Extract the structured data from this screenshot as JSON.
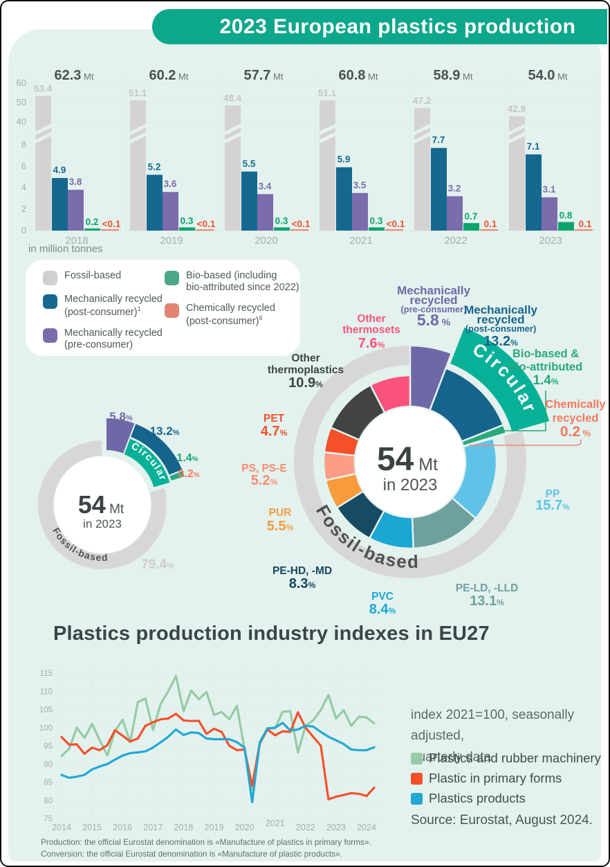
{
  "title": "2023 European plastics production",
  "legend": {
    "items": [
      {
        "lines": [
          "Fossil-based"
        ],
        "sup": "",
        "color": "#d2d0ce",
        "col": 1
      },
      {
        "lines": [
          "Mechanically recycled",
          "(post-consumer)"
        ],
        "sup": "1",
        "color": "#16688f",
        "col": 1
      },
      {
        "lines": [
          "Mechanically recycled",
          "(pre-consumer)"
        ],
        "sup": "",
        "color": "#7b6cac",
        "col": 1
      },
      {
        "lines": [
          "Bio-based (including",
          "bio-attributed since 2022)"
        ],
        "sup": "",
        "color": "#4aa886",
        "col": 2
      },
      {
        "lines": [
          "Chemically recycled",
          "(post-consumer)"
        ],
        "sup": "6",
        "color": "#e28472",
        "col": 2
      }
    ]
  },
  "footnotes": [
    "Production: the official Eurostat denomination is «Manufacture of plastics in primary forms».",
    "Conversion: the official Eurostat denomination is «Manufacture of plastic products»."
  ],
  "chart_data": [
    {
      "type": "bar",
      "id": "production-by-source",
      "unit_note": "in million tonnes",
      "totals_unit": "Mt",
      "categories": [
        "2018",
        "2019",
        "2020",
        "2021",
        "2022",
        "2023"
      ],
      "totals": [
        62.3,
        60.2,
        57.7,
        60.8,
        58.9,
        54.0
      ],
      "y_ticks_upper": [
        60,
        50,
        40
      ],
      "y_ticks_lower": [
        8,
        6,
        4,
        2,
        0
      ],
      "series": [
        {
          "name": "Fossil-based",
          "color": "#d5d3d1",
          "label_color": "#c6c3c1",
          "values": [
            53.4,
            51.1,
            48.4,
            51.1,
            47.2,
            42.9
          ]
        },
        {
          "name": "Mechanically recycled (post-consumer)",
          "color": "#16688f",
          "label_color": "#16688f",
          "values": [
            4.9,
            5.2,
            5.5,
            5.9,
            7.7,
            7.1
          ]
        },
        {
          "name": "Mechanically recycled (pre-consumer)",
          "color": "#7b6cac",
          "label_color": "#7b6cac",
          "values": [
            3.8,
            3.6,
            3.4,
            3.5,
            3.2,
            3.1
          ]
        },
        {
          "name": "Bio-based (including bio-attributed since 2022)",
          "color": "#0aa46c",
          "label_color": "#0aa46c",
          "values": [
            0.2,
            0.3,
            0.3,
            0.3,
            0.7,
            0.8
          ]
        },
        {
          "name": "Chemically recycled (post-consumer)",
          "color": "#ef8a76",
          "label_color": "#f4512b",
          "labels": [
            "<0.1",
            "<0.1",
            "<0.1",
            "<0.1",
            "0.1",
            "0.1"
          ]
        }
      ]
    },
    {
      "type": "pie",
      "id": "circular-vs-fossil-donut",
      "center_value": "54",
      "center_unit": "Mt",
      "center_sub": "in 2023",
      "circular_arc_label": "Circular",
      "fossil_label": "Fossil-based",
      "fossil_pct": 79.4,
      "segments": [
        {
          "name": "Mechanically recycled (pre-consumer)",
          "pct": 5.8,
          "color": "#6f68a7",
          "label_color": "#6f68a7"
        },
        {
          "name": "Mechanically recycled (post-consumer)",
          "pct": 13.2,
          "color": "#16648e",
          "label_color": "#16648e"
        },
        {
          "name": "Bio-based & bio-attributed",
          "pct": 1.4,
          "color": "#2aa87c",
          "label_color": "#1ba377"
        },
        {
          "name": "Chemically recycled",
          "pct": 0.2,
          "color": "#f08a76",
          "label_color": "#f4795b"
        }
      ]
    },
    {
      "type": "pie",
      "id": "polymer-breakdown-donut",
      "center_value": "54",
      "center_unit": "Mt",
      "center_sub": "in 2023",
      "circular_arc_label": "Circular",
      "fossil_label": "Fossil-based",
      "segments": [
        {
          "lines": [
            "Mechanically",
            "recycled",
            "(pre-consumer)"
          ],
          "pct": 5.8,
          "color": "#6f68a7",
          "label_color": "#6f68a7",
          "pct_space": true
        },
        {
          "lines": [
            "Mechanically",
            "recycled",
            "(post-consumer)"
          ],
          "pct": 13.2,
          "color": "#16648e",
          "label_color": "#16648e"
        },
        {
          "lines": [
            "Bio-based &",
            "bio-attributed"
          ],
          "pct": 1.4,
          "color": "#2aa87c",
          "label_color": "#2aa87c"
        },
        {
          "lines": [
            "Chemically",
            "recycled"
          ],
          "pct": 0.2,
          "color": "#f08a76",
          "label_color": "#f4795b",
          "pct_space": true
        },
        {
          "lines": [
            "PP"
          ],
          "pct": 15.7,
          "color": "#5fc3e7",
          "label_color": "#5fc3e7"
        },
        {
          "lines": [
            "PE-LD, -LLD"
          ],
          "pct": 13.1,
          "color": "#6fa0a0",
          "label_color": "#6fa0a0"
        },
        {
          "lines": [
            "PVC"
          ],
          "pct": 8.4,
          "color": "#1ba6d4",
          "label_color": "#1ba6d4"
        },
        {
          "lines": [
            "PE-HD, -MD"
          ],
          "pct": 8.3,
          "color": "#174a63",
          "label_color": "#17465f"
        },
        {
          "lines": [
            "PUR"
          ],
          "pct": 5.5,
          "color": "#f89b3d",
          "label_color": "#f89b3d"
        },
        {
          "lines": [
            "PS, PS-E"
          ],
          "pct": 5.2,
          "color": "#fb9e85",
          "label_color": "#fb8a70"
        },
        {
          "lines": [
            "PET"
          ],
          "pct": 4.7,
          "color": "#f4502a",
          "label_color": "#f4502a"
        },
        {
          "lines": [
            "Other",
            "thermoplastics"
          ],
          "pct": 10.9,
          "color": "#424444",
          "label_color": "#3d4445"
        },
        {
          "lines": [
            "Other",
            "thermosets"
          ],
          "pct": 7.6,
          "color": "#f9537b",
          "label_color": "#f9537b"
        }
      ]
    },
    {
      "type": "line",
      "id": "industry-indexes",
      "title": "Plastics production industry indexes in EU27",
      "note_lines": [
        "index 2021=100, seasonally adjusted,",
        "quarterly data"
      ],
      "source": "Source: Eurostat, August 2024.",
      "y_ticks": [
        75,
        80,
        85,
        90,
        95,
        100,
        105,
        110,
        115
      ],
      "x_ticks": [
        2014,
        2015,
        2016,
        2017,
        2018,
        2019,
        2020,
        2021,
        2022,
        2023,
        2024
      ],
      "start_year": 2014,
      "points_per_year": 4,
      "series": [
        {
          "name": "Plastics and rubber machinery",
          "color": "#95cba6",
          "values": [
            92.2,
            94.2,
            100.0,
            97.2,
            101.0,
            96.6,
            92.4,
            99.0,
            102.2,
            96.0,
            107.0,
            108.0,
            99.3,
            106.5,
            110.0,
            114.2,
            104.5,
            110.2,
            107.8,
            109.8,
            103.5,
            104.3,
            102.3,
            106.0,
            94.0,
            83.0,
            95.5,
            99.6,
            99.8,
            104.4,
            104.5,
            93.2,
            100.5,
            102.0,
            104.8,
            109.0,
            102.5,
            104.8,
            100.5,
            103.0,
            102.8,
            101.2
          ]
        },
        {
          "name": "Plastic in primary forms",
          "color": "#f4512b",
          "values": [
            97.4,
            95.3,
            95.4,
            92.8,
            94.5,
            93.8,
            95.2,
            99.3,
            97.8,
            96.2,
            97.0,
            100.5,
            101.5,
            102.3,
            102.5,
            103.8,
            102.0,
            101.8,
            101.9,
            98.3,
            99.7,
            98.8,
            95.0,
            93.8,
            94.0,
            84.0,
            95.8,
            99.5,
            97.9,
            99.0,
            98.8,
            104.2,
            100.0,
            97.5,
            95.0,
            80.3,
            81.0,
            81.5,
            82.0,
            81.8,
            81.2,
            83.5
          ]
        },
        {
          "name": "Plastics products",
          "color": "#24a7d3",
          "values": [
            87.0,
            86.2,
            86.5,
            87.0,
            88.5,
            89.3,
            90.0,
            91.2,
            92.3,
            93.0,
            93.2,
            93.5,
            94.5,
            96.0,
            97.5,
            99.5,
            98.0,
            98.7,
            98.5,
            97.0,
            96.8,
            96.8,
            96.8,
            96.0,
            94.5,
            79.5,
            96.0,
            99.8,
            100.0,
            101.3,
            99.2,
            99.5,
            100.5,
            100.3,
            98.8,
            97.5,
            96.5,
            95.5,
            94.0,
            93.8,
            93.8,
            94.6
          ]
        }
      ]
    }
  ]
}
